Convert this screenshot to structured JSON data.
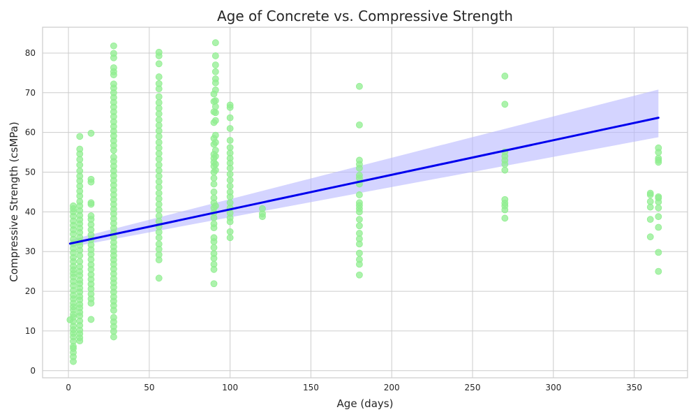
{
  "chart_data": {
    "type": "scatter",
    "title": "Age of Concrete vs. Compressive Strength",
    "xlabel": "Age (days)",
    "ylabel": "Compressive Strength (csMPa)",
    "xlim": [
      -16,
      383
    ],
    "ylim": [
      -1.8,
      86.5
    ],
    "xticks": [
      0,
      50,
      100,
      150,
      200,
      250,
      300,
      350
    ],
    "yticks": [
      0,
      10,
      20,
      30,
      40,
      50,
      60,
      70,
      80
    ],
    "grid": true,
    "legend": "none",
    "colors": {
      "points": "#90ee90",
      "fit_line": "#0000ee",
      "confidence_band": "#b8b8ff"
    },
    "columns": [
      {
        "x": 1,
        "y": [
          12.8
        ]
      },
      {
        "x": 3,
        "y": [
          2.3,
          3.5,
          4.6,
          5.6,
          6.1,
          7.4,
          8.5,
          9.4,
          10.3,
          11.2,
          12.4,
          13.5,
          14.2,
          15.3,
          16.1,
          17.0,
          18.1,
          19.0,
          20.2,
          21.4,
          22.5,
          23.6,
          24.5,
          25.4,
          26.3,
          27.5,
          28.5,
          29.7,
          30.8,
          32.0,
          33.1,
          34.4,
          35.5,
          36.6,
          37.7,
          38.9,
          40.0,
          40.8,
          41.5
        ]
      },
      {
        "x": 7,
        "y": [
          7.5,
          8.3,
          9.3,
          10.2,
          11.4,
          12.5,
          13.8,
          14.7,
          15.8,
          16.7,
          17.8,
          18.7,
          19.8,
          20.8,
          21.9,
          22.8,
          24.0,
          25.0,
          26.2,
          27.5,
          29.0,
          30.3,
          31.5,
          32.5,
          33.6,
          34.8,
          35.9,
          37.0,
          38.0,
          39.1,
          40.3,
          41.5,
          42.6,
          44.0,
          45.2,
          46.5,
          47.8,
          49.0,
          50.3,
          51.8,
          53.2,
          54.6,
          55.8,
          59.0
        ]
      },
      {
        "x": 14,
        "y": [
          12.9,
          17.0,
          18.1,
          19.3,
          20.6,
          21.8,
          23.0,
          24.2,
          25.5,
          26.7,
          28.0,
          29.3,
          30.5,
          31.7,
          33.0,
          34.2,
          35.5,
          36.8,
          38.1,
          39.0,
          41.9,
          42.3,
          47.5,
          48.2,
          59.8
        ]
      },
      {
        "x": 28,
        "y": [
          8.5,
          9.9,
          11.1,
          12.3,
          13.4,
          15.2,
          16.4,
          17.5,
          18.6,
          19.8,
          21.0,
          22.1,
          23.2,
          24.4,
          25.6,
          26.8,
          27.9,
          29.0,
          30.1,
          31.2,
          32.3,
          33.5,
          34.7,
          35.9,
          37.1,
          38.3,
          39.5,
          40.7,
          41.9,
          43.1,
          44.3,
          45.5,
          46.7,
          47.9,
          49.1,
          50.3,
          51.5,
          52.7,
          53.8,
          55.5,
          56.7,
          57.9,
          59.1,
          60.3,
          61.5,
          62.7,
          64.0,
          65.2,
          66.4,
          67.6,
          68.8,
          70.0,
          71.2,
          72.2,
          74.5,
          75.3,
          76.3,
          78.8,
          79.9,
          81.8
        ]
      },
      {
        "x": 56,
        "y": [
          23.3,
          27.9,
          29.2,
          30.6,
          31.9,
          33.5,
          34.9,
          36.3,
          37.6,
          39.0,
          40.5,
          41.9,
          43.3,
          44.7,
          46.2,
          47.6,
          49.0,
          50.4,
          51.8,
          53.3,
          54.7,
          56.1,
          57.5,
          59.0,
          60.4,
          61.8,
          63.2,
          64.7,
          66.1,
          67.5,
          69.0,
          71.0,
          72.3,
          74.0,
          77.3,
          79.3,
          80.2
        ]
      },
      {
        "x": 90,
        "y": [
          21.9,
          25.5,
          26.8,
          28.3,
          29.5,
          31.0,
          32.5,
          33.5,
          36.0,
          37.0,
          38.5,
          39.8,
          41.0,
          42.3,
          43.5,
          45.0,
          47.0,
          48.5,
          50.0,
          51.5,
          52.5,
          53.5,
          54.5,
          57.0,
          58.5,
          62.5,
          65.2,
          67.8,
          69.7
        ]
      },
      {
        "x": 91,
        "y": [
          41.5,
          50.5,
          52.0,
          54.0,
          55.5,
          57.5,
          59.3,
          63.0,
          65.0,
          66.5,
          68.0,
          70.7,
          72.5,
          73.5,
          75.3,
          77.0,
          79.3,
          82.6
        ]
      },
      {
        "x": 100,
        "y": [
          33.5,
          35.0,
          37.5,
          38.5,
          39.7,
          41.0,
          42.3,
          43.8,
          45.0,
          46.5,
          48.0,
          49.5,
          51.0,
          52.3,
          53.5,
          54.8,
          56.2,
          58.0,
          61.0,
          63.7,
          66.3,
          66.9
        ]
      },
      {
        "x": 120,
        "y": [
          38.8,
          39.5,
          40.8
        ]
      },
      {
        "x": 180,
        "y": [
          24.1,
          26.8,
          28.0,
          29.6,
          31.9,
          33.2,
          34.6,
          36.5,
          38.1,
          40.0,
          40.8,
          41.6,
          42.3,
          44.3,
          47.0,
          48.5,
          49.2,
          51.0,
          52.0,
          53.0,
          61.9,
          71.6
        ]
      },
      {
        "x": 270,
        "y": [
          38.4,
          40.5,
          41.5,
          42.2,
          43.1,
          50.5,
          52.0,
          53.0,
          54.0,
          55.1,
          67.1,
          74.2
        ]
      },
      {
        "x": 360,
        "y": [
          33.7,
          38.1,
          41.2,
          42.6,
          44.3,
          44.7
        ]
      },
      {
        "x": 365,
        "y": [
          25.0,
          29.8,
          36.1,
          38.8,
          41.0,
          42.5,
          43.5,
          43.8,
          52.5,
          53.0,
          53.5,
          55.0,
          56.1
        ]
      }
    ],
    "regression": {
      "x": [
        1,
        365
      ],
      "y": [
        32.0,
        63.7
      ],
      "ci_lower": [
        31.1,
        58.8
      ],
      "ci_upper": [
        32.9,
        70.8
      ]
    }
  }
}
